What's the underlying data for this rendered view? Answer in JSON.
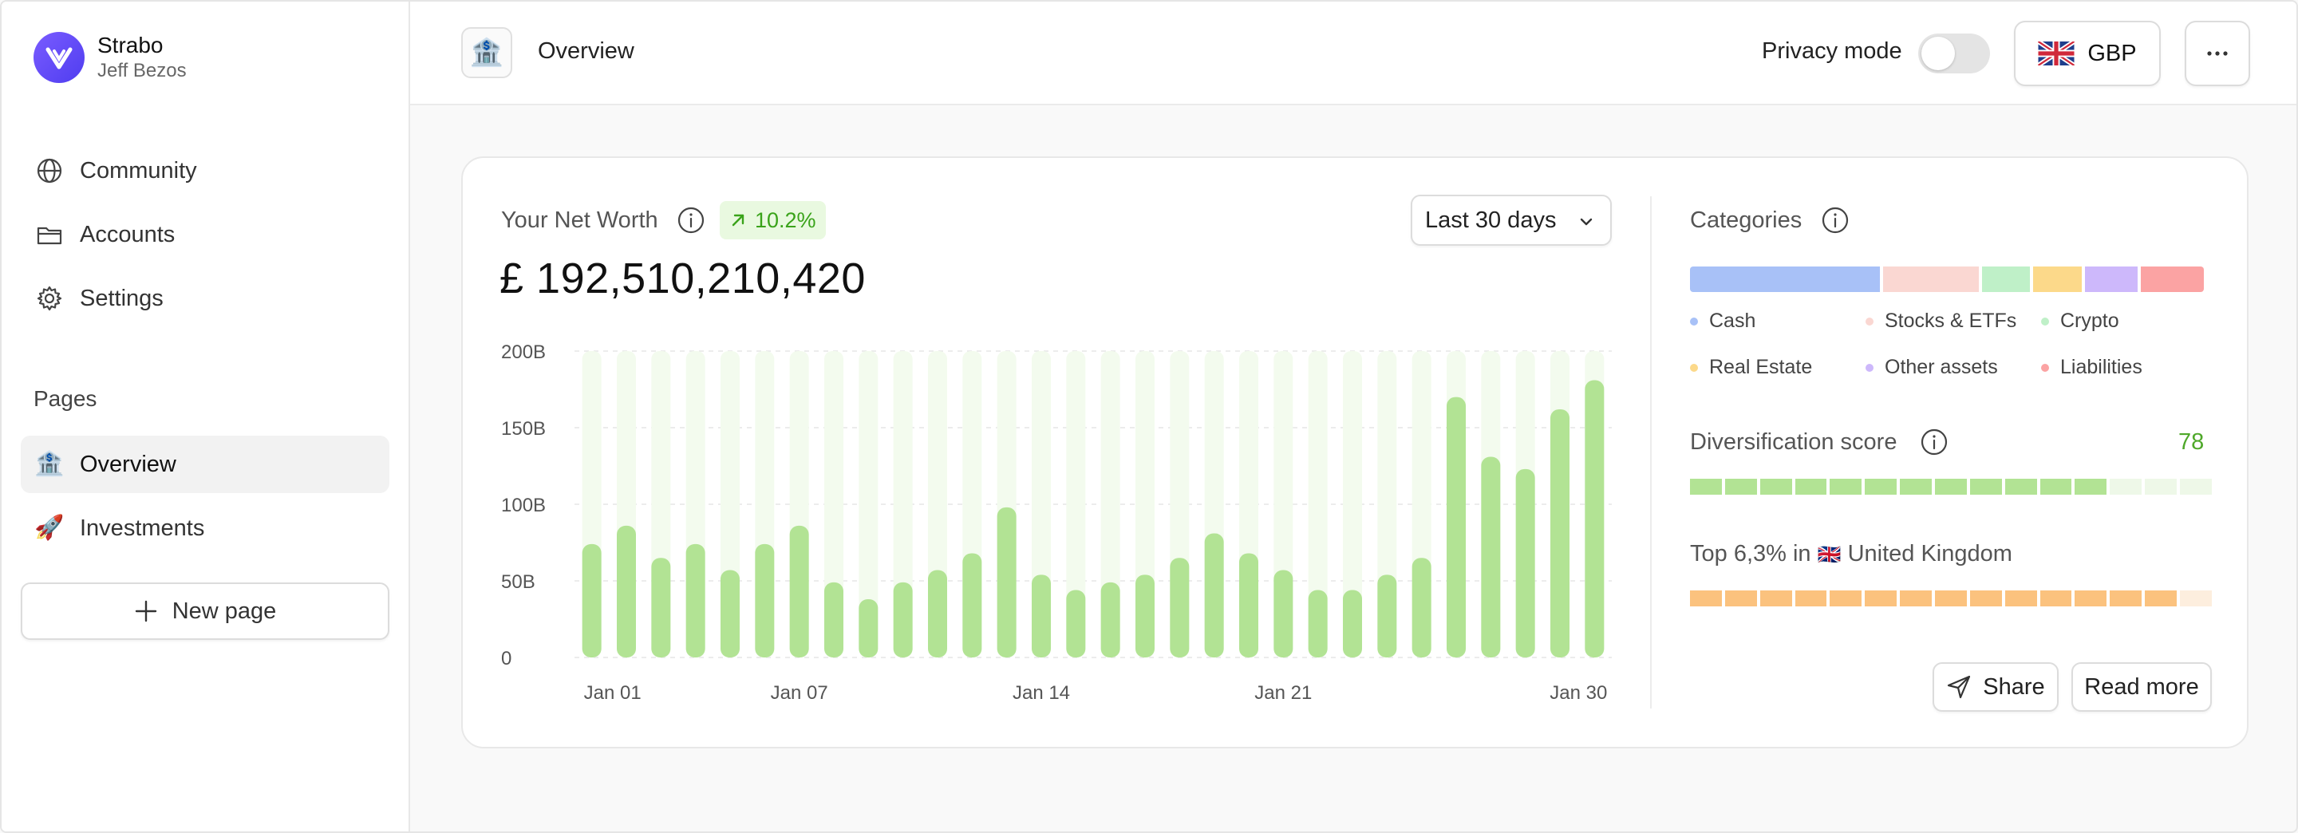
{
  "brand": {
    "name": "Strabo",
    "user": "Jeff Bezos"
  },
  "sidebar": {
    "items": [
      {
        "label": "Community",
        "icon": "globe-icon"
      },
      {
        "label": "Accounts",
        "icon": "folder-icon"
      },
      {
        "label": "Settings",
        "icon": "gear-icon"
      }
    ],
    "section_label": "Pages",
    "pages": [
      {
        "label": "Overview",
        "icon": "🏦",
        "active": true
      },
      {
        "label": "Investments",
        "icon": "🚀",
        "active": false
      }
    ],
    "new_page_label": "New page"
  },
  "header": {
    "page_icon": "🏦",
    "title": "Overview",
    "privacy_label": "Privacy mode",
    "privacy_on": false,
    "currency": "GBP",
    "more_icon": "ellipsis-icon"
  },
  "networth": {
    "label": "Your Net Worth",
    "change": "10.2%",
    "value": "£ 192,510,210,420",
    "range_label": "Last 30 days"
  },
  "chart_data": {
    "type": "bar",
    "categories": [
      "Jan 01",
      "Jan 02",
      "Jan 03",
      "Jan 04",
      "Jan 05",
      "Jan 06",
      "Jan 07",
      "Jan 08",
      "Jan 09",
      "Jan 10",
      "Jan 11",
      "Jan 12",
      "Jan 13",
      "Jan 14",
      "Jan 15",
      "Jan 16",
      "Jan 17",
      "Jan 18",
      "Jan 19",
      "Jan 20",
      "Jan 21",
      "Jan 22",
      "Jan 23",
      "Jan 24",
      "Jan 25",
      "Jan 26",
      "Jan 27",
      "Jan 28",
      "Jan 29",
      "Jan 30"
    ],
    "x_tick_labels": [
      "Jan 01",
      "Jan 07",
      "Jan 14",
      "Jan 21",
      "Jan 30"
    ],
    "values": [
      74,
      86,
      65,
      74,
      57,
      74,
      86,
      49,
      38,
      49,
      57,
      68,
      98,
      54,
      44,
      49,
      54,
      65,
      81,
      68,
      57,
      44,
      44,
      54,
      65,
      170,
      131,
      123,
      162,
      181
    ],
    "y_ticks": [
      "0",
      "50B",
      "100B",
      "150B",
      "200B"
    ],
    "ylim": [
      0,
      200
    ],
    "unit": "B",
    "colors": {
      "bar": "#b2e394",
      "track": "#f3fbee",
      "grid": "#e6e6e6"
    }
  },
  "categories_panel": {
    "title": "Categories",
    "segments": [
      {
        "name": "Cash",
        "share": 0.375,
        "color": "#a8c1f7"
      },
      {
        "name": "Stocks & ETFs",
        "share": 0.19,
        "color": "#fad7d2"
      },
      {
        "name": "Crypto",
        "share": 0.095,
        "color": "#bff0c8"
      },
      {
        "name": "Real Estate",
        "share": 0.095,
        "color": "#fcd98a"
      },
      {
        "name": "Other assets",
        "share": 0.105,
        "color": "#cdb8fb"
      },
      {
        "name": "Liabilities",
        "share": 0.125,
        "color": "#fba3a3"
      }
    ]
  },
  "diversification": {
    "title": "Diversification score",
    "score": "78",
    "filled_segments": 12,
    "total_segments": 15,
    "color_on": "#b2e394",
    "color_off": "#eef8e8"
  },
  "ranking": {
    "prefix": "Top 6,3% in",
    "flag": "🇬🇧",
    "country": "United Kingdom",
    "filled_segments": 14,
    "total_segments": 15,
    "color_on": "#fbc27e",
    "color_off": "#fdeede"
  },
  "actions": {
    "share_label": "Share",
    "read_more_label": "Read more"
  }
}
